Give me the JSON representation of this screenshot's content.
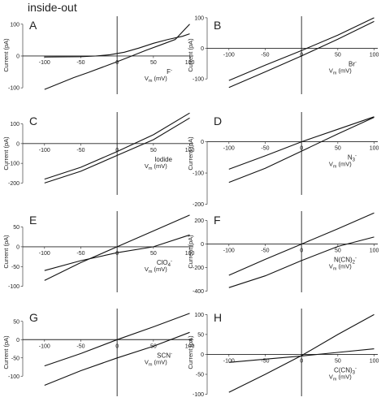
{
  "figure_title": "inside-out",
  "ylabel": "Current (pA)",
  "xlabel_main": "V",
  "xlabel_sub": "m",
  "xlabel_unit": " (mV)",
  "chart_data": [
    {
      "panel": "A",
      "type": "line",
      "annotation": "F",
      "annotation_sub": "",
      "annotation_sup": "-",
      "xlim": [
        -130,
        105
      ],
      "ylim": [
        -120,
        125
      ],
      "xticks": [
        -100,
        -50,
        0,
        50,
        100
      ],
      "yticks": [
        -100,
        0,
        100
      ],
      "series": [
        {
          "x": [
            -100,
            -60,
            -40,
            -20,
            0,
            20,
            40,
            60,
            80,
            100
          ],
          "y": [
            -105,
            -68,
            -52,
            -35,
            -18,
            0,
            18,
            35,
            52,
            100
          ]
        },
        {
          "x": [
            -100,
            -50,
            -30,
            -10,
            10,
            30,
            50,
            70,
            90,
            100
          ],
          "y": [
            -3,
            -2,
            0,
            4,
            12,
            25,
            40,
            52,
            62,
            70
          ]
        }
      ]
    },
    {
      "panel": "B",
      "type": "line",
      "annotation": "Br",
      "annotation_sub": "",
      "annotation_sup": "-",
      "xlim": [
        -130,
        105
      ],
      "ylim": [
        -150,
        105
      ],
      "xticks": [
        -100,
        -50,
        0,
        50,
        100
      ],
      "yticks": [
        -100,
        0,
        100
      ],
      "series": [
        {
          "x": [
            -100,
            -50,
            0,
            50,
            100
          ],
          "y": [
            -105,
            -55,
            -7,
            43,
            100
          ]
        },
        {
          "x": [
            -100,
            -50,
            0,
            50,
            100
          ],
          "y": [
            -128,
            -77,
            -25,
            30,
            88
          ]
        }
      ]
    },
    {
      "panel": "C",
      "type": "line",
      "annotation": "Iodide",
      "annotation_sub": "",
      "annotation_sup": "",
      "xlim": [
        -130,
        105
      ],
      "ylim": [
        -260,
        160
      ],
      "xticks": [
        -100,
        -50,
        0,
        50,
        100
      ],
      "yticks": [
        -200,
        -100,
        0,
        100
      ],
      "series": [
        {
          "x": [
            -100,
            -50,
            0,
            50,
            100
          ],
          "y": [
            -180,
            -120,
            -40,
            45,
            155
          ]
        },
        {
          "x": [
            -100,
            -50,
            0,
            50,
            100
          ],
          "y": [
            -200,
            -140,
            -60,
            20,
            130
          ]
        }
      ]
    },
    {
      "panel": "D",
      "type": "line",
      "annotation": "N",
      "annotation_sub": "3",
      "annotation_sup": "-",
      "xlim": [
        -130,
        105
      ],
      "ylim": [
        -170,
        95
      ],
      "xticks": [
        -100,
        -50,
        0,
        50,
        100
      ],
      "yticks": [
        -200,
        -100,
        0
      ],
      "series": [
        {
          "x": [
            -100,
            -50,
            0,
            50,
            100
          ],
          "y": [
            -88,
            -45,
            0,
            40,
            80
          ]
        },
        {
          "x": [
            -100,
            -50,
            0,
            50,
            100
          ],
          "y": [
            -130,
            -85,
            -30,
            25,
            78
          ]
        }
      ]
    },
    {
      "panel": "E",
      "type": "line",
      "annotation": "ClO",
      "annotation_sub": "4",
      "annotation_sup": "-",
      "xlim": [
        -130,
        105
      ],
      "ylim": [
        -115,
        90
      ],
      "xticks": [
        -100,
        -50,
        0,
        50,
        100
      ],
      "yticks": [
        -100,
        -50,
        0,
        50
      ],
      "series": [
        {
          "x": [
            -100,
            -50,
            0,
            50,
            100
          ],
          "y": [
            -85,
            -40,
            0,
            40,
            80
          ]
        },
        {
          "x": [
            -100,
            -50,
            0,
            50,
            100
          ],
          "y": [
            -60,
            -35,
            -15,
            0,
            30
          ]
        }
      ]
    },
    {
      "panel": "F",
      "type": "line",
      "annotation": "N(CN)",
      "annotation_sub": "2",
      "annotation_sup": "-",
      "xlim": [
        -130,
        105
      ],
      "ylim": [
        -410,
        280
      ],
      "xticks": [
        -100,
        -50,
        0,
        50,
        100
      ],
      "yticks": [
        -400,
        -200,
        0,
        200
      ],
      "series": [
        {
          "x": [
            -100,
            -50,
            0,
            50,
            100
          ],
          "y": [
            -265,
            -130,
            0,
            130,
            265
          ]
        },
        {
          "x": [
            -100,
            -50,
            0,
            50,
            100
          ],
          "y": [
            -370,
            -270,
            -140,
            -20,
            60
          ]
        }
      ]
    },
    {
      "panel": "G",
      "type": "line",
      "annotation": "SCN",
      "annotation_sub": "",
      "annotation_sup": "-",
      "xlim": [
        -130,
        105
      ],
      "ylim": [
        -155,
        85
      ],
      "xticks": [
        -100,
        -50,
        0,
        50,
        100
      ],
      "yticks": [
        -100,
        -50,
        0,
        50
      ],
      "series": [
        {
          "x": [
            -100,
            -50,
            0,
            50,
            100
          ],
          "y": [
            -72,
            -38,
            0,
            35,
            72
          ]
        },
        {
          "x": [
            -100,
            -50,
            0,
            50,
            100
          ],
          "y": [
            -125,
            -85,
            -50,
            -18,
            20
          ]
        }
      ]
    },
    {
      "panel": "H",
      "type": "line",
      "annotation": "C(CN)",
      "annotation_sub": "3",
      "annotation_sup": "-",
      "xlim": [
        -130,
        105
      ],
      "ylim": [
        -105,
        115
      ],
      "xticks": [
        -100,
        -50,
        0,
        50,
        100
      ],
      "yticks": [
        -100,
        -50,
        0,
        50,
        100
      ],
      "series": [
        {
          "x": [
            -100,
            -50,
            0,
            50,
            100
          ],
          "y": [
            -95,
            -50,
            -3,
            50,
            100
          ]
        },
        {
          "x": [
            -100,
            -50,
            0,
            50,
            100
          ],
          "y": [
            -20,
            -12,
            -4,
            5,
            14
          ]
        }
      ]
    }
  ]
}
